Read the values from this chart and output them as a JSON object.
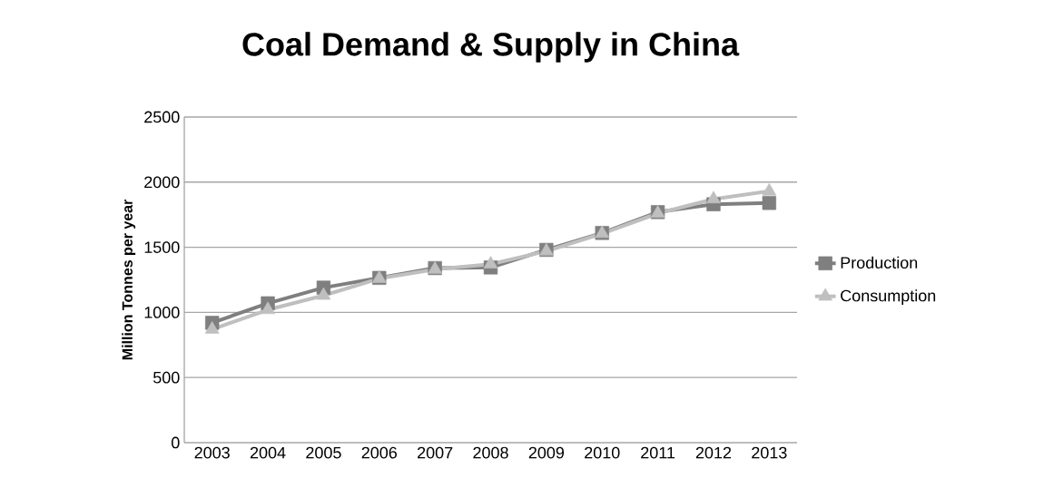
{
  "chart_data": {
    "type": "line",
    "title": "Coal Demand & Supply in China",
    "ylabel": "Million Tonnes per year",
    "categories": [
      "2003",
      "2004",
      "2005",
      "2006",
      "2007",
      "2008",
      "2009",
      "2010",
      "2011",
      "2012",
      "2013"
    ],
    "series": [
      {
        "name": "Production",
        "color": "#7f7f7f",
        "marker": "square",
        "values": [
          920,
          1070,
          1190,
          1265,
          1340,
          1345,
          1480,
          1610,
          1770,
          1830,
          1840
        ]
      },
      {
        "name": "Consumption",
        "color": "#bfbfbf",
        "marker": "triangle",
        "values": [
          870,
          1020,
          1130,
          1260,
          1330,
          1370,
          1470,
          1605,
          1760,
          1870,
          1930
        ]
      }
    ],
    "ylim": [
      0,
      2500
    ],
    "yticks": [
      0,
      500,
      1000,
      1500,
      2000,
      2500
    ],
    "grid": "y",
    "legend": "right"
  }
}
